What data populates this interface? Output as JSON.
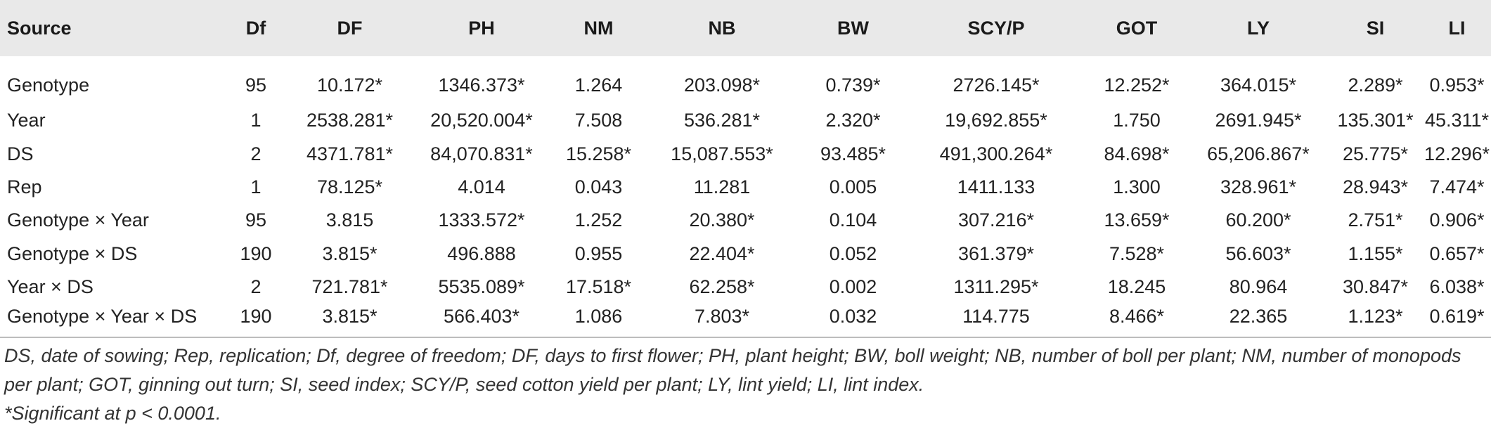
{
  "table": {
    "columns": [
      "Source",
      "Df",
      "DF",
      "PH",
      "NM",
      "NB",
      "BW",
      "SCY/P",
      "GOT",
      "LY",
      "SI",
      "LI"
    ],
    "rows": [
      [
        "Genotype",
        "95",
        "10.172*",
        "1346.373*",
        "1.264",
        "203.098*",
        "0.739*",
        "2726.145*",
        "12.252*",
        "364.015*",
        "2.289*",
        "0.953*"
      ],
      [
        "Year",
        "1",
        "2538.281*",
        "20,520.004*",
        "7.508",
        "536.281*",
        "2.320*",
        "19,692.855*",
        "1.750",
        "2691.945*",
        "135.301*",
        "45.311*"
      ],
      [
        "DS",
        "2",
        "4371.781*",
        "84,070.831*",
        "15.258*",
        "15,087.553*",
        "93.485*",
        "491,300.264*",
        "84.698*",
        "65,206.867*",
        "25.775*",
        "12.296*"
      ],
      [
        "Rep",
        "1",
        "78.125*",
        "4.014",
        "0.043",
        "11.281",
        "0.005",
        "1411.133",
        "1.300",
        "328.961*",
        "28.943*",
        "7.474*"
      ],
      [
        "Genotype × Year",
        "95",
        "3.815",
        "1333.572*",
        "1.252",
        "20.380*",
        "0.104",
        "307.216*",
        "13.659*",
        "60.200*",
        "2.751*",
        "0.906*"
      ],
      [
        "Genotype × DS",
        "190",
        "3.815*",
        "496.888",
        "0.955",
        "22.404*",
        "0.052",
        "361.379*",
        "7.528*",
        "56.603*",
        "1.155*",
        "0.657*"
      ],
      [
        "Year × DS",
        "2",
        "721.781*",
        "5535.089*",
        "17.518*",
        "62.258*",
        "0.002",
        "1311.295*",
        "18.245",
        "80.964",
        "30.847*",
        "6.038*"
      ],
      [
        "Genotype × Year × DS",
        "190",
        "3.815*",
        "566.403*",
        "1.086",
        "7.803*",
        "0.032",
        "114.775",
        "8.466*",
        "22.365",
        "1.123*",
        "0.619*"
      ]
    ]
  },
  "footnotes": {
    "abbreviations": "DS, date of sowing; Rep, replication; Df, degree of freedom; DF, days to first flower; PH, plant height; BW, boll weight; NB, number of boll per plant; NM, number of monopods per plant; GOT, ginning out turn; SI, seed index; SCY/P, seed cotton yield per plant; LY, lint yield; LI, lint index.",
    "significance": "*Significant at p < 0.0001."
  }
}
